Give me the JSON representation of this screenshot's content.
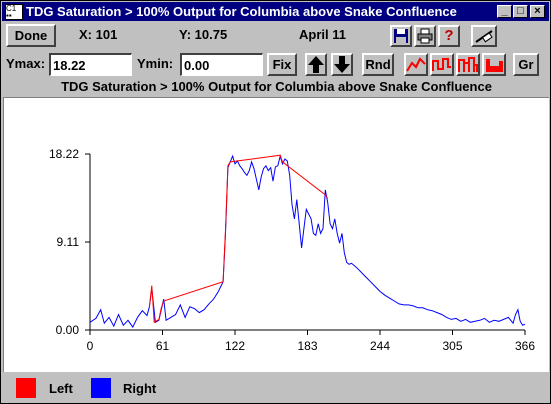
{
  "window": {
    "title": "TDG Saturation > 100% Output for Columbia above Snake Confluence",
    "sys_icon": "C1 ▪▪"
  },
  "toolbar": {
    "done_label": "Done",
    "x_readout": "X: 101",
    "y_readout": "Y: 10.75",
    "date_readout": "April 11",
    "ymax_label": "Ymax:",
    "ymax_value": "18.22",
    "ymin_label": "Ymin:",
    "ymin_value": "0.00",
    "fix_label": "Fix",
    "rnd_label": "Rnd",
    "gr_label": "Gr"
  },
  "colors": {
    "left": "#ff0000",
    "right": "#0000ff"
  },
  "chart_data": {
    "type": "line",
    "title": "TDG Saturation > 100% Output for Columbia above Snake Confluence",
    "xlim": [
      0,
      366
    ],
    "ylim": [
      0,
      18.22
    ],
    "xticks": [
      "0",
      "61",
      "122",
      "183",
      "244",
      "305",
      "366"
    ],
    "yticks": [
      "0.00",
      "9.11",
      "18.22"
    ],
    "grid": false,
    "legend": [
      {
        "name": "Left",
        "color": "#ff0000"
      },
      {
        "name": "Right",
        "color": "#0000ff"
      }
    ],
    "series": [
      {
        "name": "Right",
        "color": "#0000ff",
        "x": [
          0,
          5,
          9,
          12,
          16,
          20,
          24,
          28,
          32,
          36,
          40,
          44,
          48,
          50,
          52,
          55,
          58,
          60,
          62,
          64,
          68,
          72,
          76,
          80,
          84,
          88,
          92,
          96,
          100,
          104,
          108,
          112,
          114,
          116,
          118,
          120,
          122,
          124,
          126,
          128,
          130,
          132,
          134,
          136,
          138,
          140,
          142,
          144,
          146,
          148,
          150,
          152,
          154,
          156,
          158,
          160,
          162,
          164,
          166,
          168,
          170,
          172,
          174,
          176,
          178,
          180,
          182,
          184,
          186,
          188,
          190,
          192,
          194,
          196,
          198,
          200,
          202,
          204,
          206,
          208,
          210,
          212,
          214,
          216,
          218,
          220,
          224,
          228,
          232,
          236,
          240,
          244,
          248,
          252,
          256,
          260,
          264,
          268,
          272,
          276,
          280,
          284,
          288,
          292,
          296,
          300,
          304,
          308,
          312,
          316,
          320,
          324,
          328,
          332,
          336,
          340,
          344,
          348,
          352,
          356,
          358,
          360,
          362,
          364,
          366
        ],
        "y": [
          0.8,
          1.2,
          2.1,
          0.7,
          1.3,
          0.4,
          1.6,
          0.5,
          1.0,
          0.3,
          1.3,
          2.0,
          1.5,
          2.4,
          4.3,
          0.8,
          1.0,
          2.1,
          3.2,
          1.0,
          1.3,
          1.6,
          2.6,
          1.3,
          2.4,
          2.2,
          1.8,
          2.1,
          2.7,
          3.2,
          4.0,
          5.0,
          10.0,
          16.8,
          17.4,
          18.0,
          17.2,
          17.5,
          17.0,
          16.7,
          16.3,
          16.0,
          16.5,
          17.4,
          16.7,
          15.6,
          14.5,
          15.8,
          16.7,
          17.0,
          16.5,
          16.8,
          15.4,
          16.9,
          17.0,
          18.0,
          17.2,
          17.7,
          17.5,
          16.0,
          13.0,
          11.5,
          13.5,
          11.0,
          8.5,
          10.5,
          12.5,
          12.0,
          11.5,
          10.0,
          9.8,
          11.0,
          10.0,
          10.5,
          14.5,
          13.2,
          11.0,
          10.5,
          11.5,
          10.0,
          9.0,
          10.0,
          8.0,
          7.0,
          6.8,
          6.9,
          6.5,
          6.0,
          5.5,
          5.0,
          4.5,
          4.0,
          3.6,
          3.3,
          3.0,
          2.7,
          2.6,
          2.6,
          2.5,
          2.3,
          2.3,
          2.1,
          2.0,
          1.8,
          1.6,
          1.3,
          1.1,
          1.2,
          0.9,
          1.1,
          0.8,
          0.9,
          1.0,
          1.2,
          0.8,
          1.0,
          0.9,
          1.1,
          1.3,
          0.7,
          1.6,
          2.1,
          0.9,
          0.5,
          0.6
        ]
      },
      {
        "name": "Left",
        "color": "#ff0000",
        "x": [
          50,
          52,
          54,
          58,
          60,
          62,
          112,
          114,
          116,
          118,
          160,
          162,
          198,
          200
        ],
        "y": [
          2.4,
          4.6,
          0.8,
          1.1,
          2.3,
          3.0,
          5.0,
          10.4,
          17.0,
          17.4,
          18.1,
          17.4,
          14.0,
          13.6
        ]
      }
    ]
  }
}
